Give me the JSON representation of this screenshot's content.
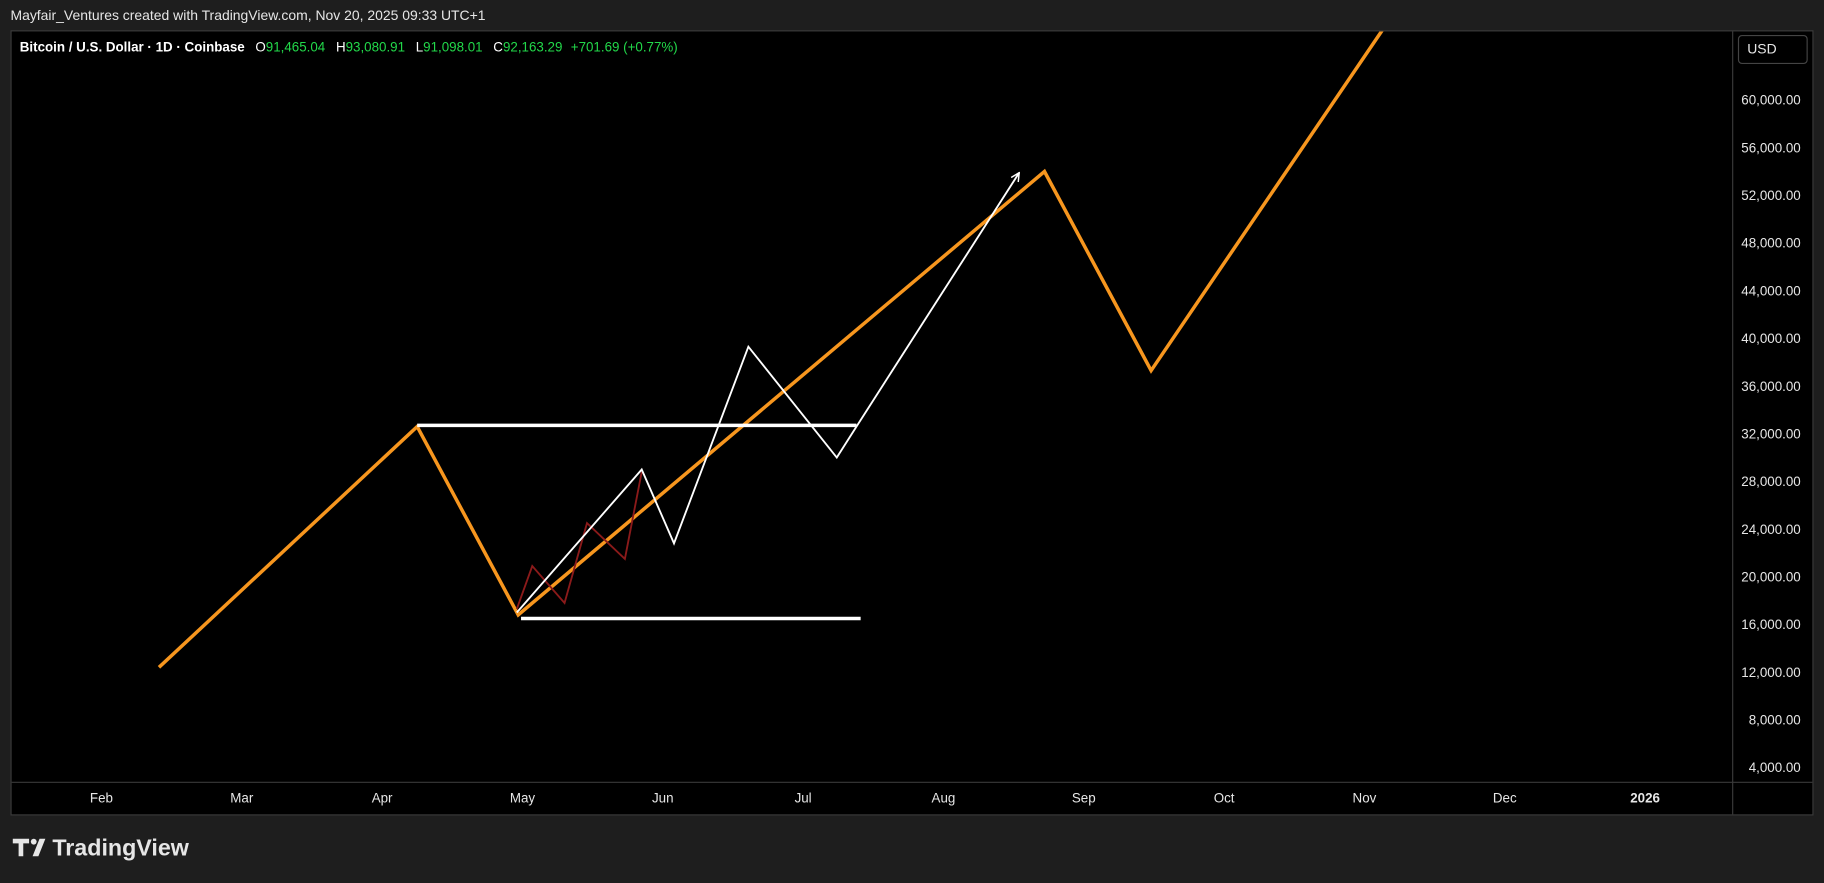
{
  "header": {
    "credit": "Mayfair_Ventures created with TradingView.com, Nov 20, 2025 09:33 UTC+1",
    "symbol": "Bitcoin / U.S. Dollar · 1D · Coinbase",
    "open_label": "O",
    "open": "91,465.04",
    "high_label": "H",
    "high": "93,080.91",
    "low_label": "L",
    "low": "91,098.01",
    "close_label": "C",
    "close": "92,163.29",
    "change": "+701.69 (+0.77%)",
    "currency": "USD",
    "logo": "TradingView"
  },
  "chart_data": {
    "type": "line",
    "grid": false,
    "background": "#000000",
    "xlim": [
      0.36,
      12.62
    ],
    "xticks": [
      {
        "value": 1,
        "label": "Feb"
      },
      {
        "value": 2,
        "label": "Mar"
      },
      {
        "value": 3,
        "label": "Apr"
      },
      {
        "value": 4,
        "label": "May"
      },
      {
        "value": 5,
        "label": "Jun"
      },
      {
        "value": 6,
        "label": "Jul"
      },
      {
        "value": 7,
        "label": "Aug"
      },
      {
        "value": 8,
        "label": "Sep"
      },
      {
        "value": 9,
        "label": "Oct"
      },
      {
        "value": 10,
        "label": "Nov"
      },
      {
        "value": 11,
        "label": "Dec"
      },
      {
        "value": 12,
        "label": "2026"
      }
    ],
    "ylim": [
      2900,
      65850
    ],
    "yticks": [
      {
        "value": 4000,
        "label": "4,000.00"
      },
      {
        "value": 8000,
        "label": "8,000.00"
      },
      {
        "value": 12000,
        "label": "12,000.00"
      },
      {
        "value": 16000,
        "label": "16,000.00"
      },
      {
        "value": 20000,
        "label": "20,000.00"
      },
      {
        "value": 24000,
        "label": "24,000.00"
      },
      {
        "value": 28000,
        "label": "28,000.00"
      },
      {
        "value": 32000,
        "label": "32,000.00"
      },
      {
        "value": 36000,
        "label": "36,000.00"
      },
      {
        "value": 40000,
        "label": "40,000.00"
      },
      {
        "value": 44000,
        "label": "44,000.00"
      },
      {
        "value": 48000,
        "label": "48,000.00"
      },
      {
        "value": 52000,
        "label": "52,000.00"
      },
      {
        "value": 56000,
        "label": "56,000.00"
      },
      {
        "value": 60000,
        "label": "60,000.00"
      }
    ],
    "series": [
      {
        "color": "#f7961e",
        "line_width": 3,
        "x": [
          1.41,
          3.25,
          3.97,
          7.72,
          8.48,
          10.13
        ],
        "values": [
          12500,
          32700,
          16900,
          54100,
          37400,
          66000
        ]
      },
      {
        "color": "#ffffff",
        "line_width": 3,
        "x": [
          3.25,
          6.38
        ],
        "values": [
          32800,
          32800
        ]
      },
      {
        "color": "#ffffff",
        "line_width": 3,
        "x": [
          3.99,
          6.41
        ],
        "values": [
          16600,
          16600
        ]
      },
      {
        "color": "#8b1a1a",
        "line_width": 1.6,
        "x": [
          3.96,
          4.07,
          4.3,
          4.46,
          4.73,
          4.85
        ],
        "values": [
          17400,
          21000,
          17900,
          24600,
          21600,
          28900
        ]
      },
      {
        "color": "#ffffff",
        "line_width": 1.6,
        "arrow": true,
        "x": [
          3.96,
          4.85,
          5.08,
          5.61,
          6.24,
          6.38,
          7.54
        ],
        "values": [
          17100,
          29100,
          22900,
          39400,
          30100,
          32700,
          54000
        ]
      }
    ]
  }
}
